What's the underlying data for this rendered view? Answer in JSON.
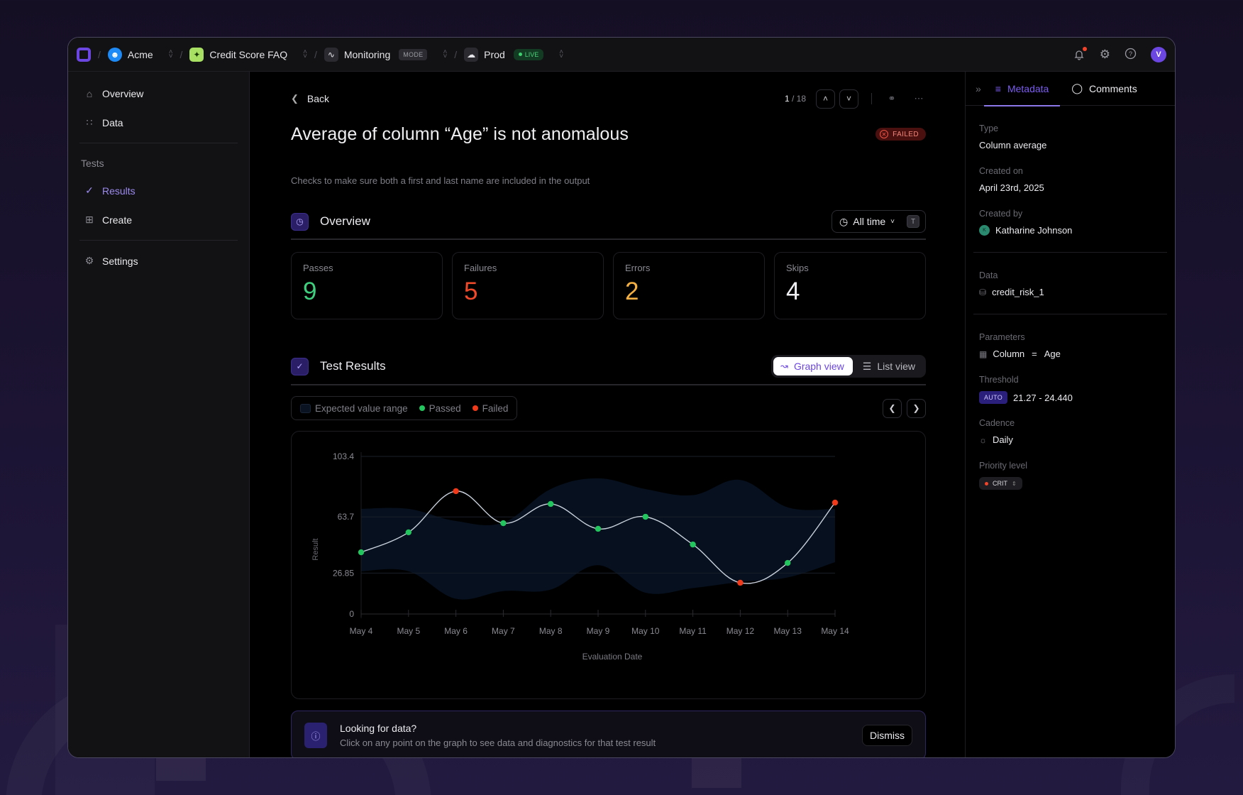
{
  "topbar": {
    "crumbs": [
      {
        "label": "Acme",
        "icon": "acme-org-icon"
      },
      {
        "label": "Credit Score FAQ",
        "icon": "sparkle-project-icon"
      },
      {
        "label": "Monitoring",
        "icon": "activity-icon",
        "tag": "MODE"
      },
      {
        "label": "Prod",
        "icon": "cloud-icon",
        "tag": "LIVE"
      }
    ],
    "avatar_initial": "V",
    "colors": {
      "brand": "#6b46e0",
      "live": "#3ecf6e",
      "notification": "#f2442a"
    }
  },
  "sidebar": {
    "items": [
      {
        "label": "Overview",
        "icon": "home-icon"
      },
      {
        "label": "Data",
        "icon": "data-grid-icon"
      }
    ],
    "section_label": "Tests",
    "test_items": [
      {
        "label": "Results",
        "icon": "check-circle-icon",
        "active": true
      },
      {
        "label": "Create",
        "icon": "add-copy-icon"
      }
    ],
    "footer_items": [
      {
        "label": "Settings",
        "icon": "gear-icon"
      }
    ]
  },
  "main": {
    "back_label": "Back",
    "pager": {
      "current": "1",
      "total": "/ 18"
    },
    "title": "Average of column “Age” is not anomalous",
    "status_badge": "FAILED",
    "description": "Checks to make sure both a first and last name are included in the output",
    "overview": {
      "title": "Overview",
      "time_filter": "All time",
      "shortcut_key": "T",
      "stats": [
        {
          "label": "Passes",
          "value": "9",
          "color": "#3ecf7e"
        },
        {
          "label": "Failures",
          "value": "5",
          "color": "#f04a2a"
        },
        {
          "label": "Errors",
          "value": "2",
          "color": "#f5b042"
        },
        {
          "label": "Skips",
          "value": "4",
          "color": "#f0f0f3"
        }
      ]
    },
    "results": {
      "title": "Test Results",
      "view_graph": "Graph view",
      "view_list": "List view",
      "legend": {
        "range": "Expected value range",
        "passed": "Passed",
        "failed": "Failed"
      }
    },
    "info": {
      "title": "Looking for data?",
      "subtitle": "Click on any point on the graph to see data and diagnostics for that test result",
      "dismiss": "Dismiss"
    }
  },
  "chart_data": {
    "type": "line",
    "title": "Test Results",
    "xlabel": "Evaluation Date",
    "ylabel": "Result",
    "ylim": [
      0,
      103.4
    ],
    "yticks": [
      0,
      26.85,
      63.7,
      103.4
    ],
    "grid": true,
    "legend_position": "top-left",
    "categories": [
      "May 4",
      "May 5",
      "May 6",
      "May 7",
      "May 8",
      "May 9",
      "May 10",
      "May 11",
      "May 12",
      "May 13",
      "May 14"
    ],
    "series": [
      {
        "name": "Result",
        "values": [
          40.5,
          53.6,
          80.6,
          59.6,
          72.2,
          55.9,
          63.8,
          45.6,
          20.5,
          33.5,
          73.1
        ],
        "status": [
          "passed",
          "passed",
          "failed",
          "passed",
          "passed",
          "passed",
          "passed",
          "passed",
          "failed",
          "passed",
          "failed"
        ]
      },
      {
        "name": "Expected value range (upper)",
        "values": [
          69,
          69,
          61,
          60,
          82,
          89,
          82,
          78,
          88,
          70,
          69
        ]
      },
      {
        "name": "Expected value range (lower)",
        "values": [
          28,
          28,
          10,
          15,
          16,
          32,
          14,
          17,
          21,
          24,
          34
        ]
      }
    ],
    "colors": {
      "passed": "#22c55e",
      "failed": "#f03a1a",
      "line": "#c8d0dc",
      "range": "#07111f"
    }
  },
  "rpanel": {
    "tabs": [
      {
        "label": "Metadata",
        "active": true
      },
      {
        "label": "Comments"
      }
    ],
    "type_label": "Type",
    "type_value": "Column average",
    "created_on_label": "Created on",
    "created_on_value": "April 23rd, 2025",
    "created_by_label": "Created by",
    "created_by_value": "Katharine Johnson",
    "created_by_initial": "K",
    "data_label": "Data",
    "data_value": "credit_risk_1",
    "params_label": "Parameters",
    "param_key": "Column",
    "param_op": "=",
    "param_value": "Age",
    "threshold_label": "Threshold",
    "threshold_tag": "AUTO",
    "threshold_value": "21.27 - 24.440",
    "cadence_label": "Cadence",
    "cadence_value": "Daily",
    "priority_label": "Priority level",
    "priority_value": "CRIT"
  }
}
